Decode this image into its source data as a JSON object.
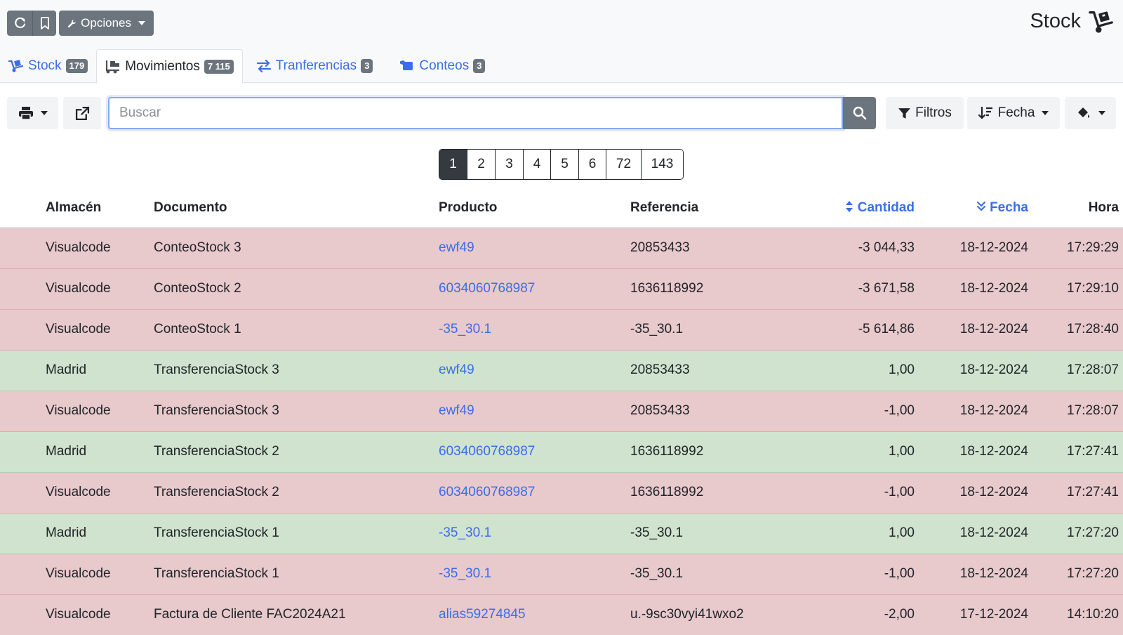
{
  "header": {
    "options_label": "Opciones",
    "page_title": "Stock"
  },
  "tabs": [
    {
      "label": "Stock",
      "count": "179",
      "active": false
    },
    {
      "label": "Movimientos",
      "count": "7 115",
      "active": true
    },
    {
      "label": "Tranferencias",
      "count": "3",
      "active": false
    },
    {
      "label": "Conteos",
      "count": "3",
      "active": false
    }
  ],
  "toolbar": {
    "search_placeholder": "Buscar",
    "search_value": "",
    "filters_label": "Filtros",
    "sort_label": "Fecha"
  },
  "pagination": {
    "pages": [
      "1",
      "2",
      "3",
      "4",
      "5",
      "6",
      "72",
      "143"
    ],
    "current": "1"
  },
  "table": {
    "headers": {
      "almacen": "Almacén",
      "documento": "Documento",
      "producto": "Producto",
      "referencia": "Referencia",
      "cantidad": "Cantidad",
      "fecha": "Fecha",
      "hora": "Hora"
    },
    "rows": [
      {
        "almacen": "Visualcode",
        "documento": "ConteoStock 3",
        "producto": "ewf49",
        "referencia": "20853433",
        "cantidad": "-3 044,33",
        "fecha": "18-12-2024",
        "hora": "17:29:29",
        "type": "neg"
      },
      {
        "almacen": "Visualcode",
        "documento": "ConteoStock 2",
        "producto": "6034060768987",
        "referencia": "1636118992",
        "cantidad": "-3 671,58",
        "fecha": "18-12-2024",
        "hora": "17:29:10",
        "type": "neg"
      },
      {
        "almacen": "Visualcode",
        "documento": "ConteoStock 1",
        "producto": "-35_30.1",
        "referencia": "-35_30.1",
        "cantidad": "-5 614,86",
        "fecha": "18-12-2024",
        "hora": "17:28:40",
        "type": "neg"
      },
      {
        "almacen": "Madrid",
        "documento": "TransferenciaStock 3",
        "producto": "ewf49",
        "referencia": "20853433",
        "cantidad": "1,00",
        "fecha": "18-12-2024",
        "hora": "17:28:07",
        "type": "pos"
      },
      {
        "almacen": "Visualcode",
        "documento": "TransferenciaStock 3",
        "producto": "ewf49",
        "referencia": "20853433",
        "cantidad": "-1,00",
        "fecha": "18-12-2024",
        "hora": "17:28:07",
        "type": "neg"
      },
      {
        "almacen": "Madrid",
        "documento": "TransferenciaStock 2",
        "producto": "6034060768987",
        "referencia": "1636118992",
        "cantidad": "1,00",
        "fecha": "18-12-2024",
        "hora": "17:27:41",
        "type": "pos"
      },
      {
        "almacen": "Visualcode",
        "documento": "TransferenciaStock 2",
        "producto": "6034060768987",
        "referencia": "1636118992",
        "cantidad": "-1,00",
        "fecha": "18-12-2024",
        "hora": "17:27:41",
        "type": "neg"
      },
      {
        "almacen": "Madrid",
        "documento": "TransferenciaStock 1",
        "producto": "-35_30.1",
        "referencia": "-35_30.1",
        "cantidad": "1,00",
        "fecha": "18-12-2024",
        "hora": "17:27:20",
        "type": "pos"
      },
      {
        "almacen": "Visualcode",
        "documento": "TransferenciaStock 1",
        "producto": "-35_30.1",
        "referencia": "-35_30.1",
        "cantidad": "-1,00",
        "fecha": "18-12-2024",
        "hora": "17:27:20",
        "type": "neg"
      },
      {
        "almacen": "Visualcode",
        "documento": "Factura de Cliente FAC2024A21",
        "producto": "alias59274845",
        "referencia": "u.-9sc30vyi41wxo2",
        "cantidad": "-2,00",
        "fecha": "17-12-2024",
        "hora": "14:10:20",
        "type": "neg"
      }
    ]
  },
  "colors": {
    "accent": "#3b6ee8",
    "negative_row": "#e8c9cc",
    "positive_row": "#cfe3ce",
    "button_dark": "#6c757d"
  },
  "icons": [
    "refresh-icon",
    "bookmark-icon",
    "wrench-icon",
    "dolly-icon",
    "truck-loading-icon",
    "exchange-icon",
    "scroll-icon",
    "print-icon",
    "external-link-icon",
    "search-icon",
    "filter-icon",
    "sort-amount-icon",
    "paint-bucket-icon"
  ]
}
